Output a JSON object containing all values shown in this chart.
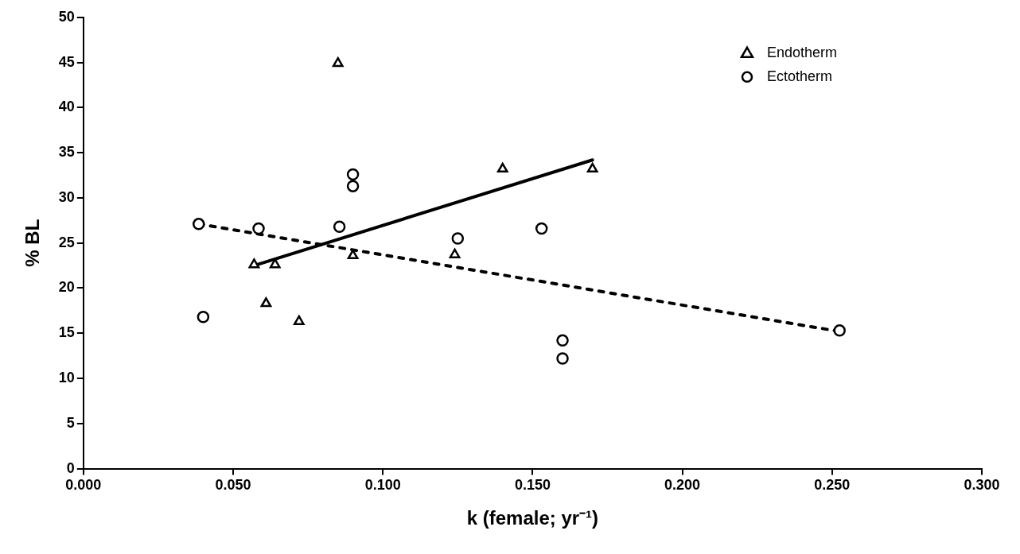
{
  "chart_data": {
    "type": "scatter",
    "xlabel": "k (female; yr⁻¹)",
    "ylabel": "% BL",
    "xlim": [
      0,
      0.3
    ],
    "ylim": [
      0,
      50
    ],
    "xticks": [
      {
        "value": 0,
        "label": "0.000"
      },
      {
        "value": 0.05,
        "label": "0.050"
      },
      {
        "value": 0.1,
        "label": "0.100"
      },
      {
        "value": 0.15,
        "label": "0.150"
      },
      {
        "value": 0.2,
        "label": "0.200"
      },
      {
        "value": 0.25,
        "label": "0.250"
      },
      {
        "value": 0.3,
        "label": "0.300"
      }
    ],
    "yticks": [
      0,
      5,
      10,
      15,
      20,
      25,
      30,
      35,
      40,
      45,
      50
    ],
    "grid": false,
    "legend": "top right",
    "series": [
      {
        "name": "Endotherm",
        "marker": "triangle",
        "color": "#000000",
        "x": [
          0.057,
          0.064,
          0.061,
          0.072,
          0.085,
          0.09,
          0.124,
          0.14,
          0.17
        ],
        "values": [
          22.6,
          22.6,
          18.3,
          16.3,
          44.9,
          23.6,
          23.7,
          33.2,
          33.2
        ]
      },
      {
        "name": "Ectotherm",
        "marker": "circle",
        "color": "#000000",
        "x": [
          0.0385,
          0.04,
          0.0585,
          0.0855,
          0.09,
          0.09,
          0.125,
          0.153,
          0.16,
          0.16,
          0.2525
        ],
        "values": [
          27.1,
          16.8,
          26.6,
          26.8,
          32.6,
          31.3,
          25.5,
          26.6,
          14.2,
          12.2,
          15.3
        ]
      },
      {
        "type": "line",
        "marker": "none",
        "line_style": "solid",
        "color": "#000000",
        "x": [
          0.057,
          0.17
        ],
        "values": [
          22.5,
          34.2
        ]
      },
      {
        "type": "line",
        "marker": "none",
        "line_style": "dotted",
        "color": "#000000",
        "x": [
          0.0385,
          0.2525
        ],
        "values": [
          27.1,
          15.2
        ]
      }
    ]
  }
}
